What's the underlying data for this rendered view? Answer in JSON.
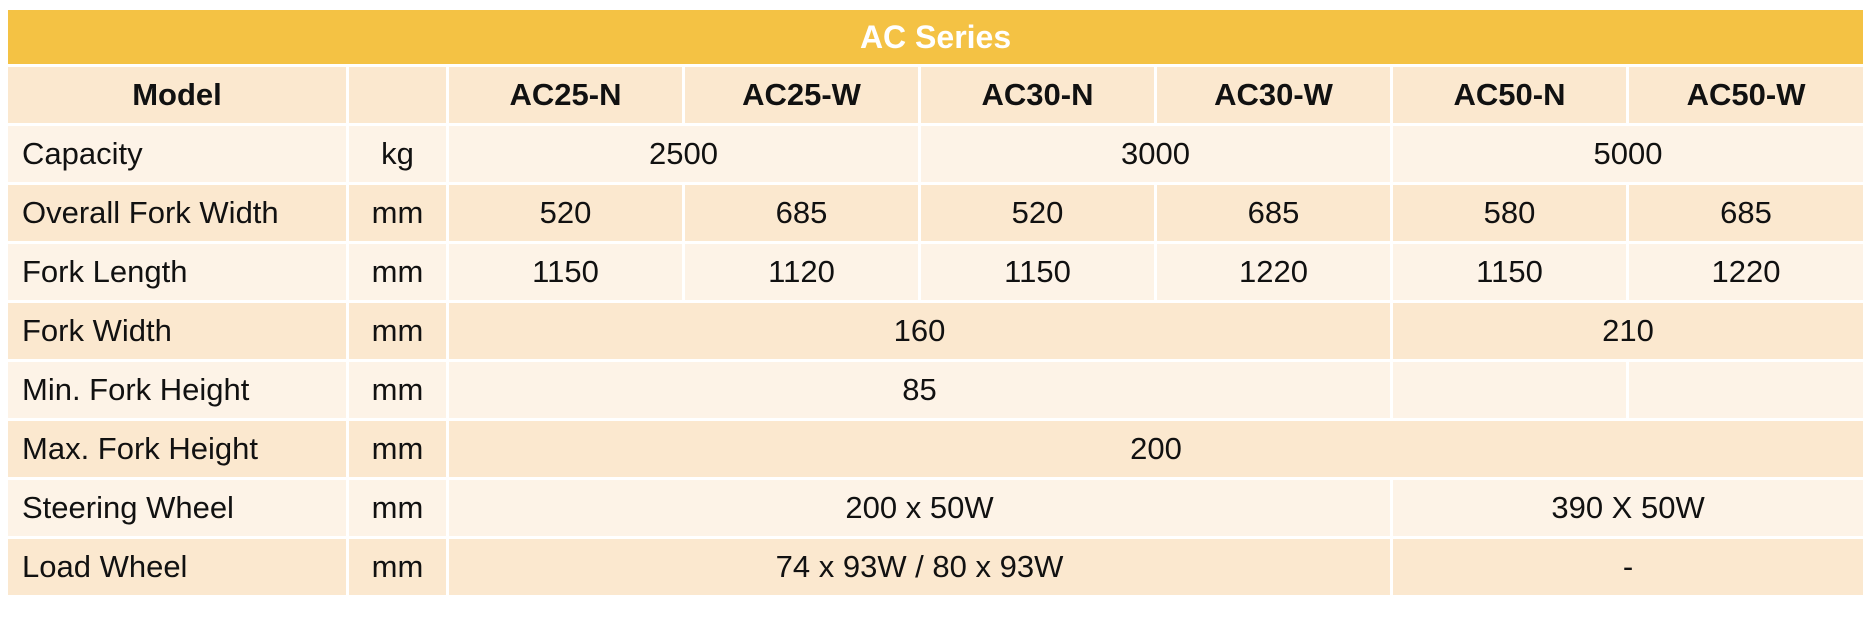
{
  "table": {
    "title": "AC Series",
    "header": {
      "label": "Model",
      "models": [
        "AC25-N",
        "AC25-W",
        "AC30-N",
        "AC30-W",
        "AC50-N",
        "AC50-W"
      ]
    },
    "rows": [
      {
        "label": "Capacity",
        "unit": "kg",
        "values": [
          2500,
          3000,
          5000
        ]
      },
      {
        "label": "Overall Fork Width",
        "unit": "mm",
        "values": [
          520,
          685,
          520,
          685,
          580,
          685
        ]
      },
      {
        "label": "Fork Length",
        "unit": "mm",
        "values": [
          1150,
          1120,
          1150,
          1220,
          1150,
          1220
        ]
      },
      {
        "label": "Fork Width",
        "unit": "mm",
        "values": [
          160,
          210
        ]
      },
      {
        "label": "Min. Fork Height",
        "unit": "mm",
        "values": [
          85
        ]
      },
      {
        "label": "Max. Fork Height",
        "unit": "mm",
        "values": [
          200
        ]
      },
      {
        "label": "Steering Wheel",
        "unit": "mm",
        "values": [
          "200 x 50W",
          "390 X 50W"
        ]
      },
      {
        "label": "Load Wheel",
        "unit": "mm",
        "values": [
          "74 x 93W / 80 x 93W",
          "-"
        ]
      }
    ]
  }
}
